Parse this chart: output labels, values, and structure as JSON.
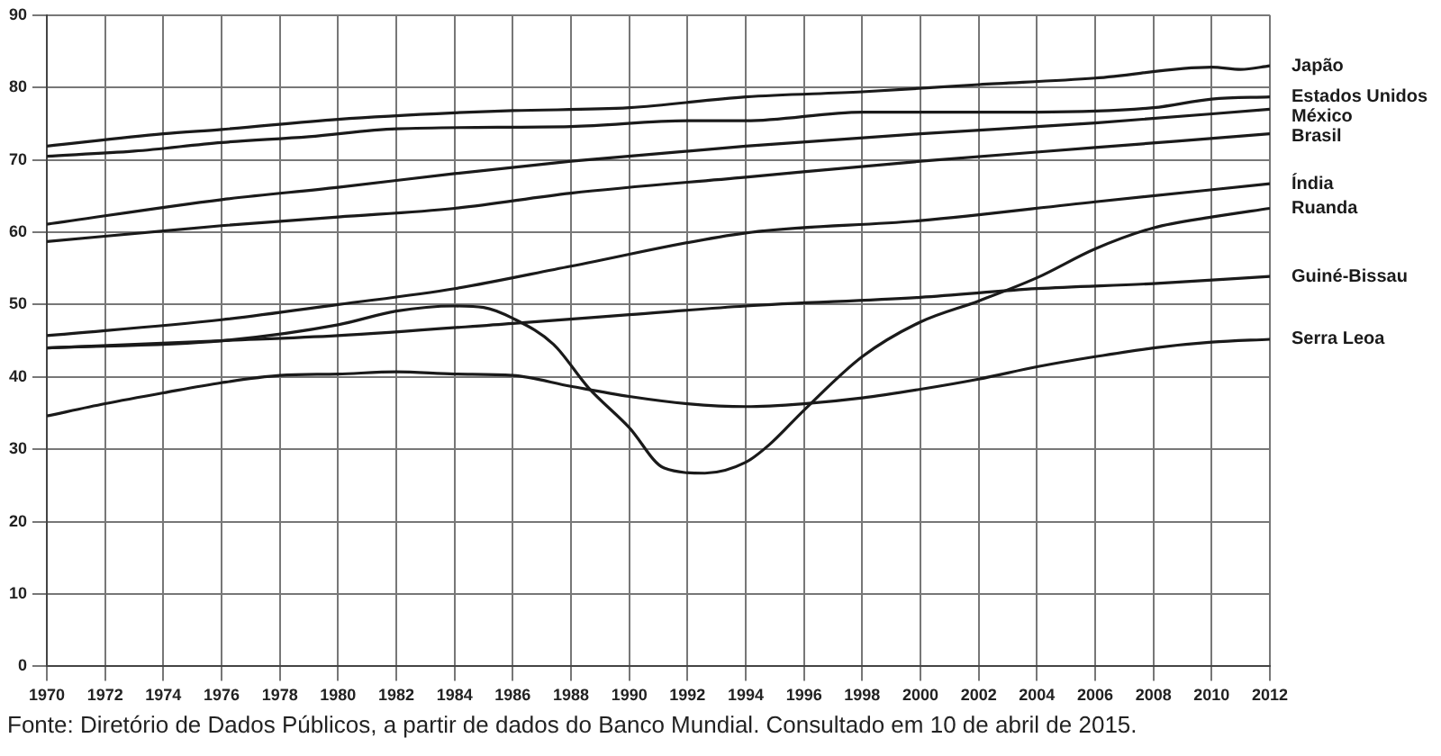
{
  "chart_data": {
    "type": "line",
    "xlim": [
      1970,
      2012
    ],
    "xticks": [
      1970,
      1972,
      1974,
      1976,
      1978,
      1980,
      1982,
      1984,
      1986,
      1988,
      1990,
      1992,
      1994,
      1996,
      1998,
      2000,
      2002,
      2004,
      2006,
      2008,
      2010,
      2012
    ],
    "ylim": [
      0,
      90
    ],
    "yticks": [
      0,
      10,
      20,
      30,
      40,
      50,
      60,
      70,
      80,
      90
    ],
    "grid": true,
    "legend": false,
    "marker": "none",
    "line_style": "solid",
    "annotations": [
      "Fonte: Diretório de Dados Públicos, a partir de dados do Banco Mundial. Consultado em 10 de abril de 2015."
    ],
    "series": [
      {
        "name": "Japão",
        "color": "#1a1a1a",
        "x": [
          1970,
          1974,
          1976,
          1980,
          1984,
          1986,
          1990,
          1994,
          1998,
          2002,
          2006,
          2010,
          2011,
          2012
        ],
        "values": [
          71.9,
          73.6,
          74.2,
          75.6,
          76.5,
          76.8,
          77.2,
          78.7,
          79.4,
          80.4,
          81.3,
          82.8,
          82.5,
          83.0
        ]
      },
      {
        "name": "Estados Unidos",
        "color": "#1a1a1a",
        "x": [
          1970,
          1973,
          1976,
          1979,
          1982,
          1988,
          1992,
          1994,
          1998,
          2004,
          2008,
          2010,
          2012
        ],
        "values": [
          70.5,
          71.2,
          72.4,
          73.2,
          74.3,
          74.6,
          75.4,
          75.4,
          76.6,
          76.6,
          77.2,
          78.4,
          78.7
        ]
      },
      {
        "name": "México",
        "color": "#1a1a1a",
        "x": [
          1970,
          1976,
          1980,
          1984,
          1988,
          1994,
          2000,
          2006,
          2012
        ],
        "values": [
          61.1,
          64.5,
          66.2,
          68.1,
          69.8,
          71.9,
          73.6,
          75.1,
          77.0
        ]
      },
      {
        "name": "Brasil",
        "color": "#1a1a1a",
        "x": [
          1970,
          1976,
          1980,
          1984,
          1988,
          1994,
          2000,
          2006,
          2012
        ],
        "values": [
          58.7,
          60.9,
          62.1,
          63.3,
          65.4,
          67.6,
          69.8,
          71.7,
          73.6
        ]
      },
      {
        "name": "Índia",
        "color": "#1a1a1a",
        "x": [
          1970,
          1976,
          1980,
          1984,
          1988,
          1994,
          2000,
          2006,
          2012
        ],
        "values": [
          45.7,
          47.9,
          50.0,
          52.2,
          55.3,
          59.9,
          61.6,
          64.2,
          66.7
        ]
      },
      {
        "name": "Ruanda",
        "color": "#1a1a1a",
        "x": [
          1970,
          1976,
          1980,
          1982,
          1984,
          1985,
          1986,
          1987.4,
          1988.6,
          1990,
          1991.2,
          1992.6,
          1994,
          1994.8,
          1996,
          1998,
          2000,
          2002,
          2004,
          2006,
          2008,
          2010,
          2012
        ],
        "values": [
          44.0,
          45.0,
          47.2,
          49.1,
          49.8,
          49.6,
          48.1,
          44.5,
          38.5,
          33.0,
          27.4,
          26.7,
          28.2,
          30.6,
          35.4,
          42.8,
          47.6,
          50.5,
          53.7,
          57.7,
          60.6,
          62.1,
          63.3
        ]
      },
      {
        "name": "Guiné-Bissau",
        "color": "#1a1a1a",
        "x": [
          1970,
          1976,
          1980,
          1986,
          1990,
          1994,
          2000,
          2004,
          2008,
          2012
        ],
        "values": [
          44.0,
          45.0,
          45.7,
          47.4,
          48.6,
          49.8,
          51.0,
          52.2,
          52.9,
          53.9
        ]
      },
      {
        "name": "Serra Leoa",
        "color": "#1a1a1a",
        "x": [
          1970,
          1972,
          1974,
          1976,
          1978,
          1980,
          1982,
          1984,
          1986,
          1988,
          1990,
          1992,
          1994,
          1996,
          1998,
          2000,
          2002,
          2004,
          2006,
          2008,
          2010,
          2012
        ],
        "values": [
          34.6,
          36.3,
          37.8,
          39.2,
          40.2,
          40.4,
          40.7,
          40.4,
          40.2,
          38.7,
          37.3,
          36.3,
          35.9,
          36.3,
          37.1,
          38.3,
          39.7,
          41.4,
          42.8,
          44.0,
          44.8,
          45.2
        ]
      }
    ]
  }
}
